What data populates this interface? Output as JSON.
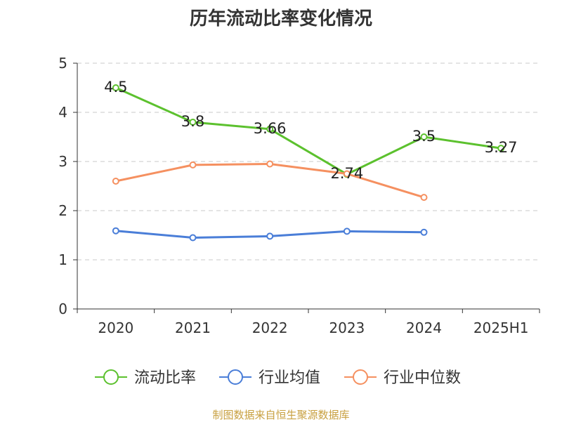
{
  "chart_data": {
    "type": "line",
    "title": "历年流动比率变化情况",
    "categories": [
      "2020",
      "2021",
      "2022",
      "2023",
      "2024",
      "2025H1"
    ],
    "ylim": [
      0,
      5
    ],
    "yticks": [
      "0",
      "1",
      "2",
      "3",
      "4",
      "5"
    ],
    "grid": true,
    "legend_position": "bottom",
    "series": [
      {
        "name": "流动比率",
        "color": "#5cc12e",
        "values": [
          4.5,
          3.8,
          3.66,
          2.74,
          3.5,
          3.27
        ],
        "labels": [
          "4.5",
          "3.8",
          "3.66",
          "2.74",
          "3.5",
          "3.27"
        ]
      },
      {
        "name": "行业均值",
        "color": "#4a7ed8",
        "values": [
          1.59,
          1.45,
          1.48,
          1.58,
          1.56,
          null
        ],
        "labels": []
      },
      {
        "name": "行业中位数",
        "color": "#f59060",
        "values": [
          2.6,
          2.93,
          2.95,
          2.75,
          2.27,
          null
        ],
        "labels": []
      }
    ]
  },
  "source_note": "制图数据来自恒生聚源数据库"
}
